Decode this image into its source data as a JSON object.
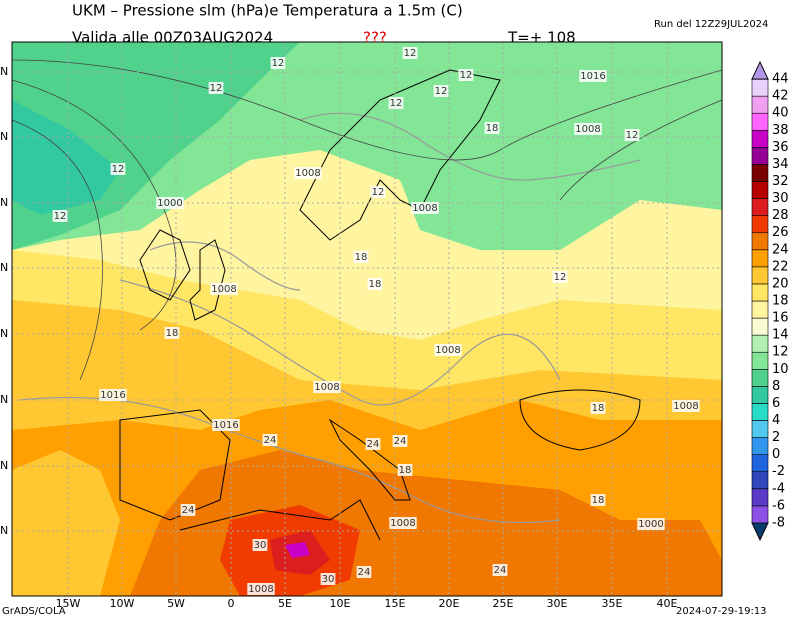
{
  "header": {
    "title": "UKM – Pressione slm (hPa)e Temperatura a 1.5m (C)",
    "run": "Run del 12Z29JUL2024",
    "valid": "Valida alle 00Z03AUG2024",
    "flag": "???",
    "step": "T=+ 108"
  },
  "footer": {
    "left": "GrADS/COLA",
    "right": "2024-07-29-19:13"
  },
  "lon_labels": [
    "15W",
    "10W",
    "5W",
    "0",
    "5E",
    "10E",
    "15E",
    "20E",
    "25E",
    "30E",
    "35E",
    "40E"
  ],
  "lat_labels": [
    "N",
    "N",
    "N",
    "N",
    "N",
    "N",
    "N",
    "N"
  ],
  "colorbar": {
    "levels": [
      -8,
      -6,
      -4,
      -2,
      0,
      2,
      4,
      6,
      8,
      10,
      12,
      14,
      16,
      18,
      20,
      22,
      24,
      26,
      28,
      30,
      32,
      34,
      36,
      38,
      40,
      42,
      44
    ],
    "colors": [
      "#0a3c6e",
      "#8c50e6",
      "#5a3cc8",
      "#3246be",
      "#1e64dc",
      "#3296f0",
      "#50c8f0",
      "#28dcc8",
      "#32c8a0",
      "#50d28c",
      "#82e696",
      "#b4f0b4",
      "#fafad2",
      "#fff5a0",
      "#ffe664",
      "#ffc832",
      "#ffa000",
      "#f07800",
      "#f03c00",
      "#dc1e1e",
      "#b40000",
      "#780000",
      "#960096",
      "#c800c8",
      "#ff64ff",
      "#f0a0f0",
      "#e6d2fa",
      "#b496e6"
    ]
  },
  "contour_labels": [
    "12",
    "12",
    "12",
    "1016",
    "12",
    "12",
    "12",
    "18",
    "1008",
    "12",
    "1008",
    "12",
    "12",
    "1000",
    "1008",
    "12",
    "18",
    "12",
    "1008",
    "18",
    "18",
    "1008",
    "1008",
    "1016",
    "18",
    "1008",
    "1016",
    "24",
    "24",
    "24",
    "18",
    "1008",
    "24",
    "1000",
    "30",
    "30",
    "1008",
    "24",
    "24",
    "18"
  ]
}
